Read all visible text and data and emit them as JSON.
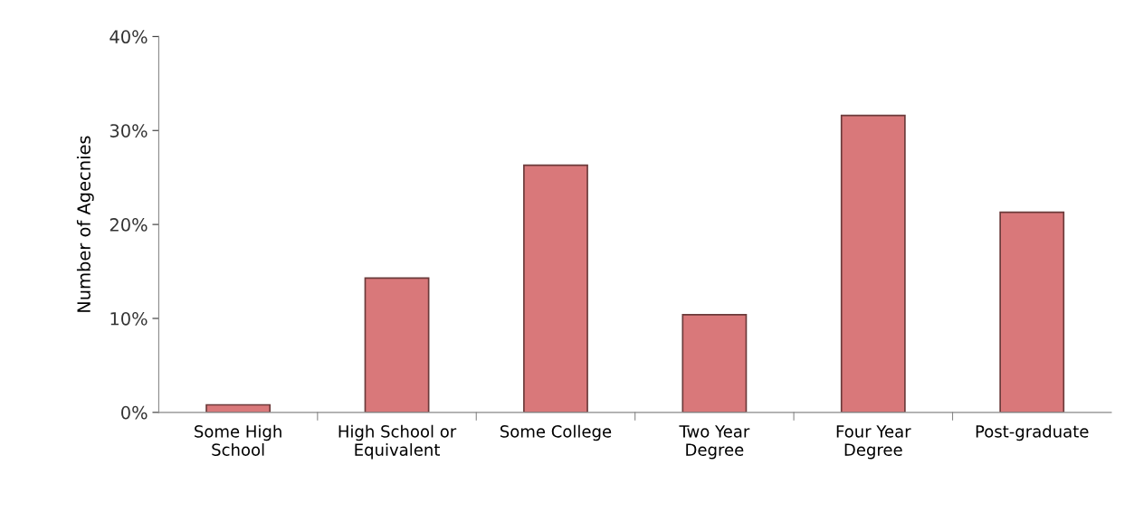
{
  "chart_data": {
    "type": "bar",
    "ylabel": "Number of Agecnies",
    "categories": [
      "Some High\nSchool",
      "High School or\nEquivalent",
      "Some College",
      "Two Year\nDegree",
      "Four Year\nDegree",
      "Post-graduate"
    ],
    "values": [
      0.8,
      14.3,
      26.3,
      10.4,
      31.6,
      21.3
    ],
    "color": "#d9787a",
    "ylim": [
      0,
      40
    ],
    "yticks": [
      {
        "value": 0,
        "label": "0%"
      },
      {
        "value": 10,
        "label": "10%"
      },
      {
        "value": 20,
        "label": "20%"
      },
      {
        "value": 30,
        "label": "30%"
      },
      {
        "value": 40,
        "label": "40%"
      }
    ],
    "grid": false,
    "legend": false
  }
}
